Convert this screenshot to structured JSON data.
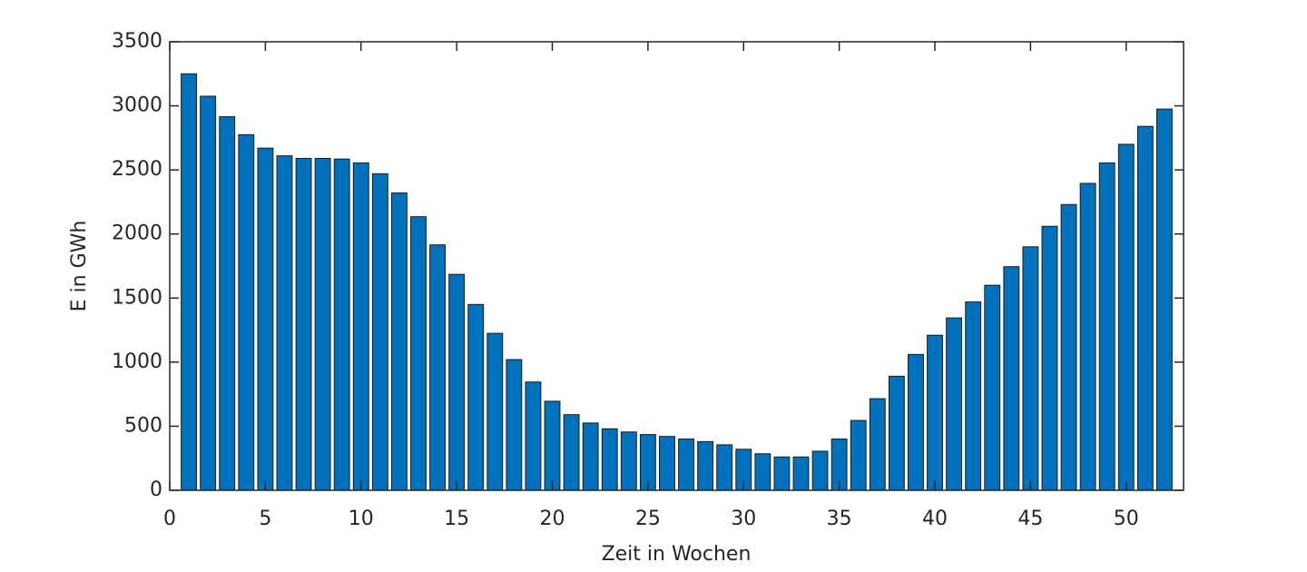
{
  "chart_data": {
    "type": "bar",
    "xlabel": "Zeit in Wochen",
    "ylabel": "E in GWh",
    "x": [
      1,
      2,
      3,
      4,
      5,
      6,
      7,
      8,
      9,
      10,
      11,
      12,
      13,
      14,
      15,
      16,
      17,
      18,
      19,
      20,
      21,
      22,
      23,
      24,
      25,
      26,
      27,
      28,
      29,
      30,
      31,
      32,
      33,
      34,
      35,
      36,
      37,
      38,
      39,
      40,
      41,
      42,
      43,
      44,
      45,
      46,
      47,
      48,
      49,
      50,
      51,
      52
    ],
    "values": [
      3250,
      3075,
      2915,
      2775,
      2670,
      2610,
      2590,
      2590,
      2585,
      2555,
      2470,
      2320,
      2135,
      1915,
      1685,
      1450,
      1225,
      1020,
      845,
      695,
      590,
      525,
      480,
      455,
      435,
      420,
      400,
      380,
      355,
      320,
      285,
      260,
      260,
      305,
      400,
      545,
      715,
      890,
      1060,
      1210,
      1345,
      1470,
      1600,
      1745,
      1900,
      2060,
      2230,
      2395,
      2555,
      2700,
      2840,
      2975
    ],
    "color": "#0072bd",
    "xlim": [
      0,
      53
    ],
    "xticks": [
      0,
      5,
      10,
      15,
      20,
      25,
      30,
      35,
      40,
      45,
      50
    ],
    "ylim": [
      0,
      3500
    ],
    "yticks": [
      0,
      500,
      1000,
      1500,
      2000,
      2500,
      3000,
      3500
    ]
  }
}
